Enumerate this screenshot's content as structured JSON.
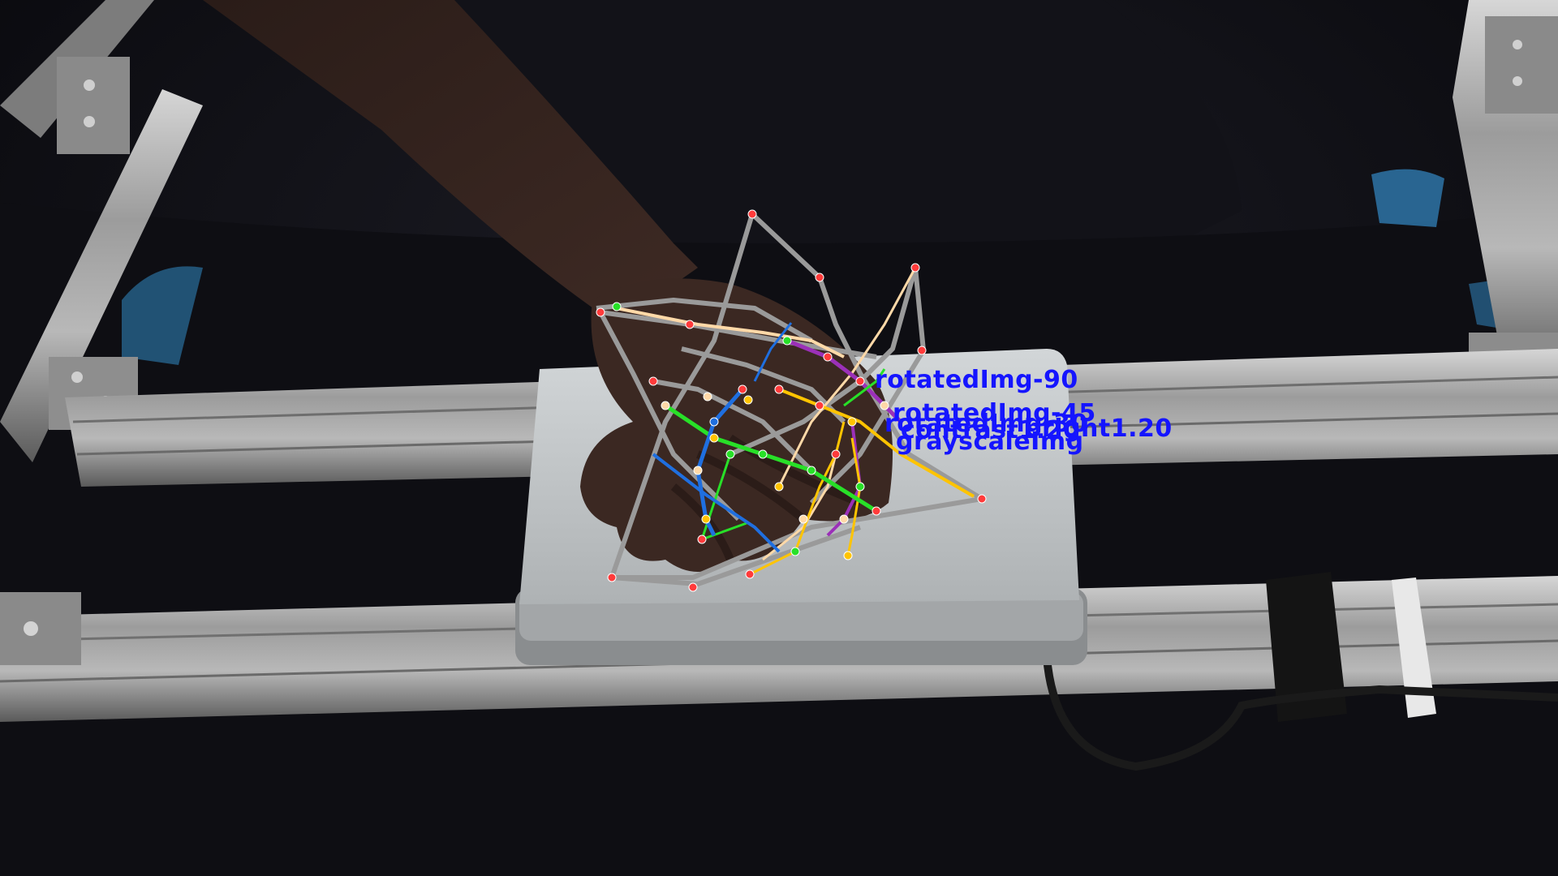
{
  "overlay": {
    "labels": [
      {
        "text": "rotatedImg-90"
      },
      {
        "text": "rotatedImg-45"
      },
      {
        "text": "rotatedImg-30"
      },
      {
        "text": "bright1.20"
      },
      {
        "text": "contrast1.20"
      },
      {
        "text": "grayscaleImg"
      }
    ]
  },
  "colors": {
    "keypoint": "#ff3b3b",
    "skeleton_gray": "#9a9a9a",
    "thumb": "#ffd9a8",
    "index": "#9b30b8",
    "middle": "#ffc400",
    "ring": "#28e028",
    "pinky": "#1f6fe0",
    "label": "#1515ff"
  }
}
